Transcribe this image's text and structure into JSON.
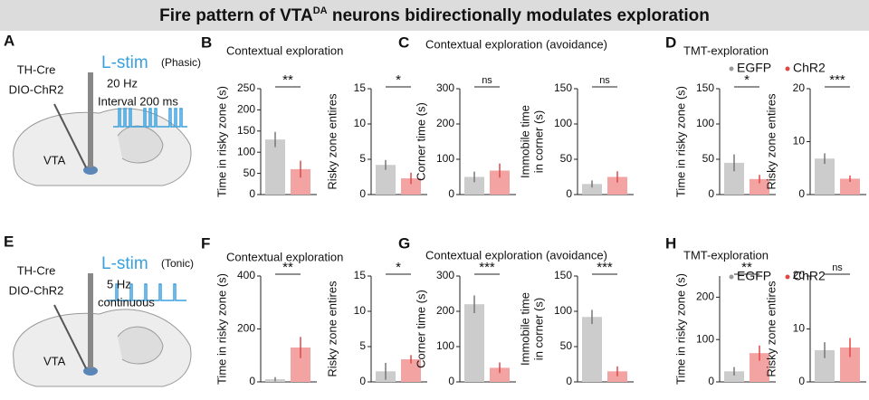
{
  "title_parts": [
    "Fire pattern of VTA",
    "DA",
    " neurons bidirectionally modulates exploration"
  ],
  "diagrams": [
    {
      "letter": "A",
      "labels": [
        "TH-Cre",
        "DIO-ChR2",
        "L-stim",
        "(Phasic)",
        "20 Hz",
        "Interval 200 ms",
        "VTA"
      ]
    },
    {
      "letter": "E",
      "labels": [
        "TH-Cre",
        "DIO-ChR2",
        "L-stim",
        "(Tonic)",
        "5 Hz",
        "continuous",
        "VTA"
      ]
    }
  ],
  "panels": [
    {
      "letter": "B",
      "heading": "Contextual exploration"
    },
    {
      "letter": "C",
      "heading": "Contextual exploration (avoidance)"
    },
    {
      "letter": "D",
      "heading": "TMT-exploration"
    },
    {
      "letter": "F",
      "heading": "Contextual exploration"
    },
    {
      "letter": "G",
      "heading": "Contextual exploration (avoidance)"
    },
    {
      "letter": "H",
      "heading": "TMT-exploration"
    }
  ],
  "chart_data": [
    {
      "type": "bar",
      "ylabel": [
        "Time in risky zone (s)"
      ],
      "values": [
        130,
        60
      ],
      "errors": [
        18,
        20
      ],
      "colors": [
        "#cccccc",
        "#f4a3a3"
      ],
      "ylim": [
        0,
        250
      ],
      "yticks": [
        0,
        50,
        100,
        150,
        200,
        250
      ],
      "significance": "**"
    },
    {
      "type": "bar",
      "ylabel": [
        "Risky zone entires"
      ],
      "values": [
        4.2,
        2.3
      ],
      "errors": [
        0.7,
        0.8
      ],
      "colors": [
        "#cccccc",
        "#f4a3a3"
      ],
      "ylim": [
        0,
        15
      ],
      "yticks": [
        0,
        5,
        10,
        15
      ],
      "significance": "*"
    },
    {
      "type": "bar",
      "ylabel": [
        "Corner time (s)"
      ],
      "values": [
        50,
        68
      ],
      "errors": [
        15,
        20
      ],
      "colors": [
        "#cccccc",
        "#f4a3a3"
      ],
      "ylim": [
        0,
        300
      ],
      "yticks": [
        0,
        100,
        200,
        300
      ],
      "significance": "ns"
    },
    {
      "type": "bar",
      "ylabel": [
        "Immobile time",
        "in corner (s)"
      ],
      "values": [
        15,
        25
      ],
      "errors": [
        5,
        8
      ],
      "colors": [
        "#cccccc",
        "#f4a3a3"
      ],
      "ylim": [
        0,
        150
      ],
      "yticks": [
        0,
        50,
        100,
        150
      ],
      "significance": "ns"
    },
    {
      "type": "bar",
      "ylabel": [
        "Time in risky zone (s)"
      ],
      "values": [
        45,
        22
      ],
      "errors": [
        12,
        6
      ],
      "colors": [
        "#cccccc",
        "#f4a3a3"
      ],
      "ylim": [
        0,
        150
      ],
      "yticks": [
        0,
        50,
        100,
        150
      ],
      "significance": "*",
      "legend": [
        "EGFP",
        "ChR2"
      ]
    },
    {
      "type": "bar",
      "ylabel": [
        "Risky zone entires"
      ],
      "values": [
        6.8,
        3
      ],
      "errors": [
        1,
        0.6
      ],
      "colors": [
        "#cccccc",
        "#f4a3a3"
      ],
      "ylim": [
        0,
        20
      ],
      "yticks": [
        0,
        10,
        20
      ],
      "significance": "***"
    },
    {
      "type": "bar",
      "ylabel": [
        "Time in risky zone (s)"
      ],
      "values": [
        10,
        130
      ],
      "errors": [
        8,
        40
      ],
      "colors": [
        "#cccccc",
        "#f4a3a3"
      ],
      "ylim": [
        0,
        400
      ],
      "yticks": [
        0,
        200,
        400
      ],
      "significance": "**"
    },
    {
      "type": "bar",
      "ylabel": [
        "Risky zone entires"
      ],
      "values": [
        1.5,
        3.2
      ],
      "errors": [
        1.2,
        0.6
      ],
      "colors": [
        "#cccccc",
        "#f4a3a3"
      ],
      "ylim": [
        0,
        15
      ],
      "yticks": [
        0,
        5,
        10,
        15
      ],
      "significance": "*"
    },
    {
      "type": "bar",
      "ylabel": [
        "Corner time (s)"
      ],
      "values": [
        220,
        40
      ],
      "errors": [
        25,
        15
      ],
      "colors": [
        "#cccccc",
        "#f4a3a3"
      ],
      "ylim": [
        0,
        300
      ],
      "yticks": [
        0,
        100,
        200,
        300
      ],
      "significance": "***"
    },
    {
      "type": "bar",
      "ylabel": [
        "Immobile time",
        "in corner (s)"
      ],
      "values": [
        92,
        15
      ],
      "errors": [
        10,
        7
      ],
      "colors": [
        "#cccccc",
        "#f4a3a3"
      ],
      "ylim": [
        0,
        150
      ],
      "yticks": [
        0,
        50,
        100,
        150
      ],
      "significance": "***"
    },
    {
      "type": "bar",
      "ylabel": [
        "Time in risky zone (s)"
      ],
      "values": [
        25,
        68
      ],
      "errors": [
        10,
        18
      ],
      "colors": [
        "#cccccc",
        "#f4a3a3"
      ],
      "ylim": [
        0,
        250
      ],
      "yticks": [
        0,
        100,
        200
      ],
      "significance": "**",
      "legend": [
        "EGFP",
        "ChR2"
      ]
    },
    {
      "type": "bar",
      "ylabel": [
        "Risky zone entires"
      ],
      "values": [
        6,
        6.5
      ],
      "errors": [
        1.5,
        1.8
      ],
      "colors": [
        "#cccccc",
        "#f4a3a3"
      ],
      "ylim": [
        0,
        20
      ],
      "yticks": [
        0,
        10,
        20
      ],
      "significance": "ns"
    }
  ]
}
